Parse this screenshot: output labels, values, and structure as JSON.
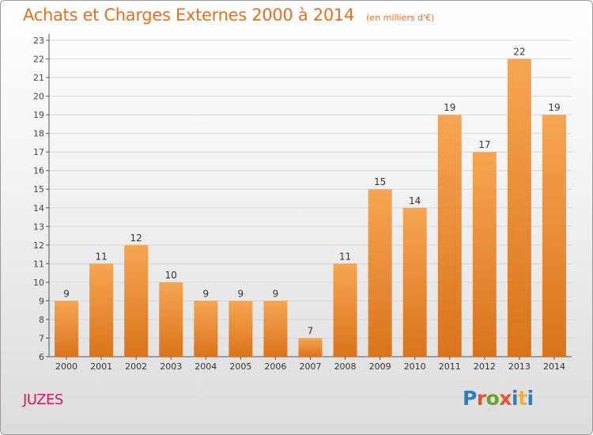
{
  "header": {
    "title": "Achats et Charges Externes 2000 à 2014",
    "subtitle": "(en milliers d'€)"
  },
  "footer": {
    "commune": "JUZES",
    "logo_text": "Proxiti"
  },
  "colors": {
    "title": "#ef6c1a",
    "commune": "#d21a5b",
    "bar_top": "#f7a552",
    "bar_bottom": "#d9741c",
    "logo_letters": [
      "#2c7fc0",
      "#e8522a",
      "#6aa22c",
      "#e8522a",
      "#2c7fc0",
      "#f2b230",
      "#2c7fc0"
    ]
  },
  "chart_data": {
    "type": "bar",
    "title": "Achats et Charges Externes 2000 à 2014",
    "subtitle": "(en milliers d'€)",
    "categories": [
      "2000",
      "2001",
      "2002",
      "2003",
      "2004",
      "2005",
      "2006",
      "2007",
      "2008",
      "2009",
      "2010",
      "2011",
      "2012",
      "2013",
      "2014"
    ],
    "values": [
      9,
      11,
      12,
      10,
      9,
      9,
      9,
      7,
      11,
      15,
      14,
      19,
      17,
      22,
      19
    ],
    "data_labels": [
      "9",
      "11",
      "12",
      "10",
      "9",
      "9",
      "9",
      "7",
      "11",
      "15",
      "14",
      "19",
      "17",
      "22",
      "19"
    ],
    "y_ticks": [
      "6",
      "7",
      "8",
      "9",
      "10",
      "11",
      "12",
      "13",
      "14",
      "15",
      "16",
      "17",
      "18",
      "19",
      "20",
      "21",
      "22",
      "23"
    ],
    "ylim": [
      6,
      23
    ],
    "xlabel": "",
    "ylabel": "",
    "grid": true
  }
}
